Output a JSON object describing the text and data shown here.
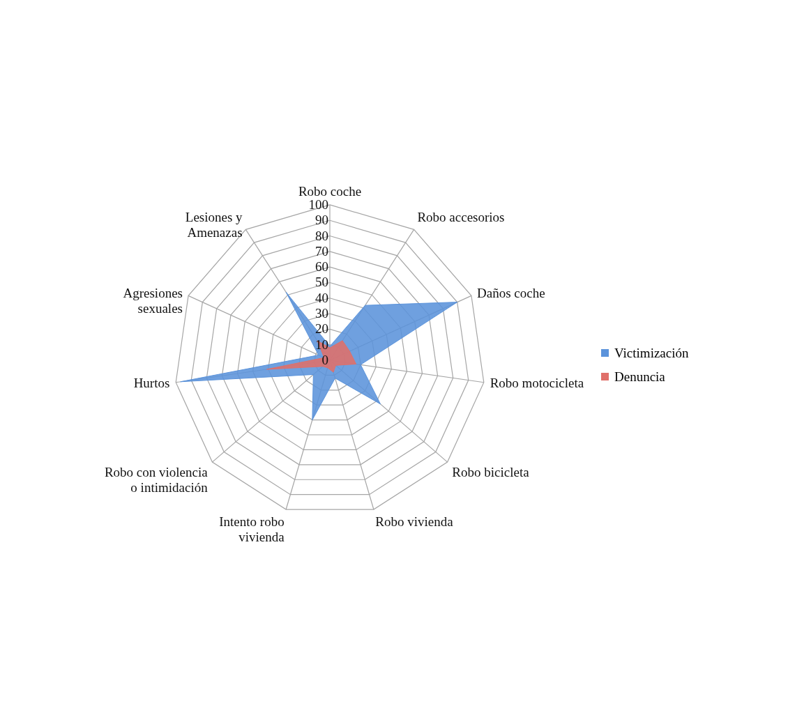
{
  "chart_data": {
    "type": "radar",
    "categories": [
      "Robo coche",
      "Robo accesorios",
      "Daños coche",
      "Robo motocicleta",
      "Robo bicicleta",
      "Robo vivienda",
      "Intento robo\nvivienda",
      "Robo con violencia\no intimidación",
      "Hurtos",
      "Agresiones\nsexuales",
      "Lesiones y\nAmenazas"
    ],
    "series": [
      {
        "name": "Victimización",
        "color": "#5b93db",
        "values": [
          9,
          42,
          90,
          20,
          43,
          12,
          40,
          14,
          97,
          8,
          52
        ]
      },
      {
        "name": "Denuncia",
        "color": "#e0706a",
        "values": [
          8,
          15,
          14,
          17,
          5,
          8,
          5,
          6,
          41,
          4,
          15
        ]
      }
    ],
    "ylim": [
      0,
      100
    ],
    "yticks": [
      0,
      10,
      20,
      30,
      40,
      50,
      60,
      70,
      80,
      90,
      100
    ],
    "grid": true,
    "legend": "right",
    "marker": "none"
  }
}
